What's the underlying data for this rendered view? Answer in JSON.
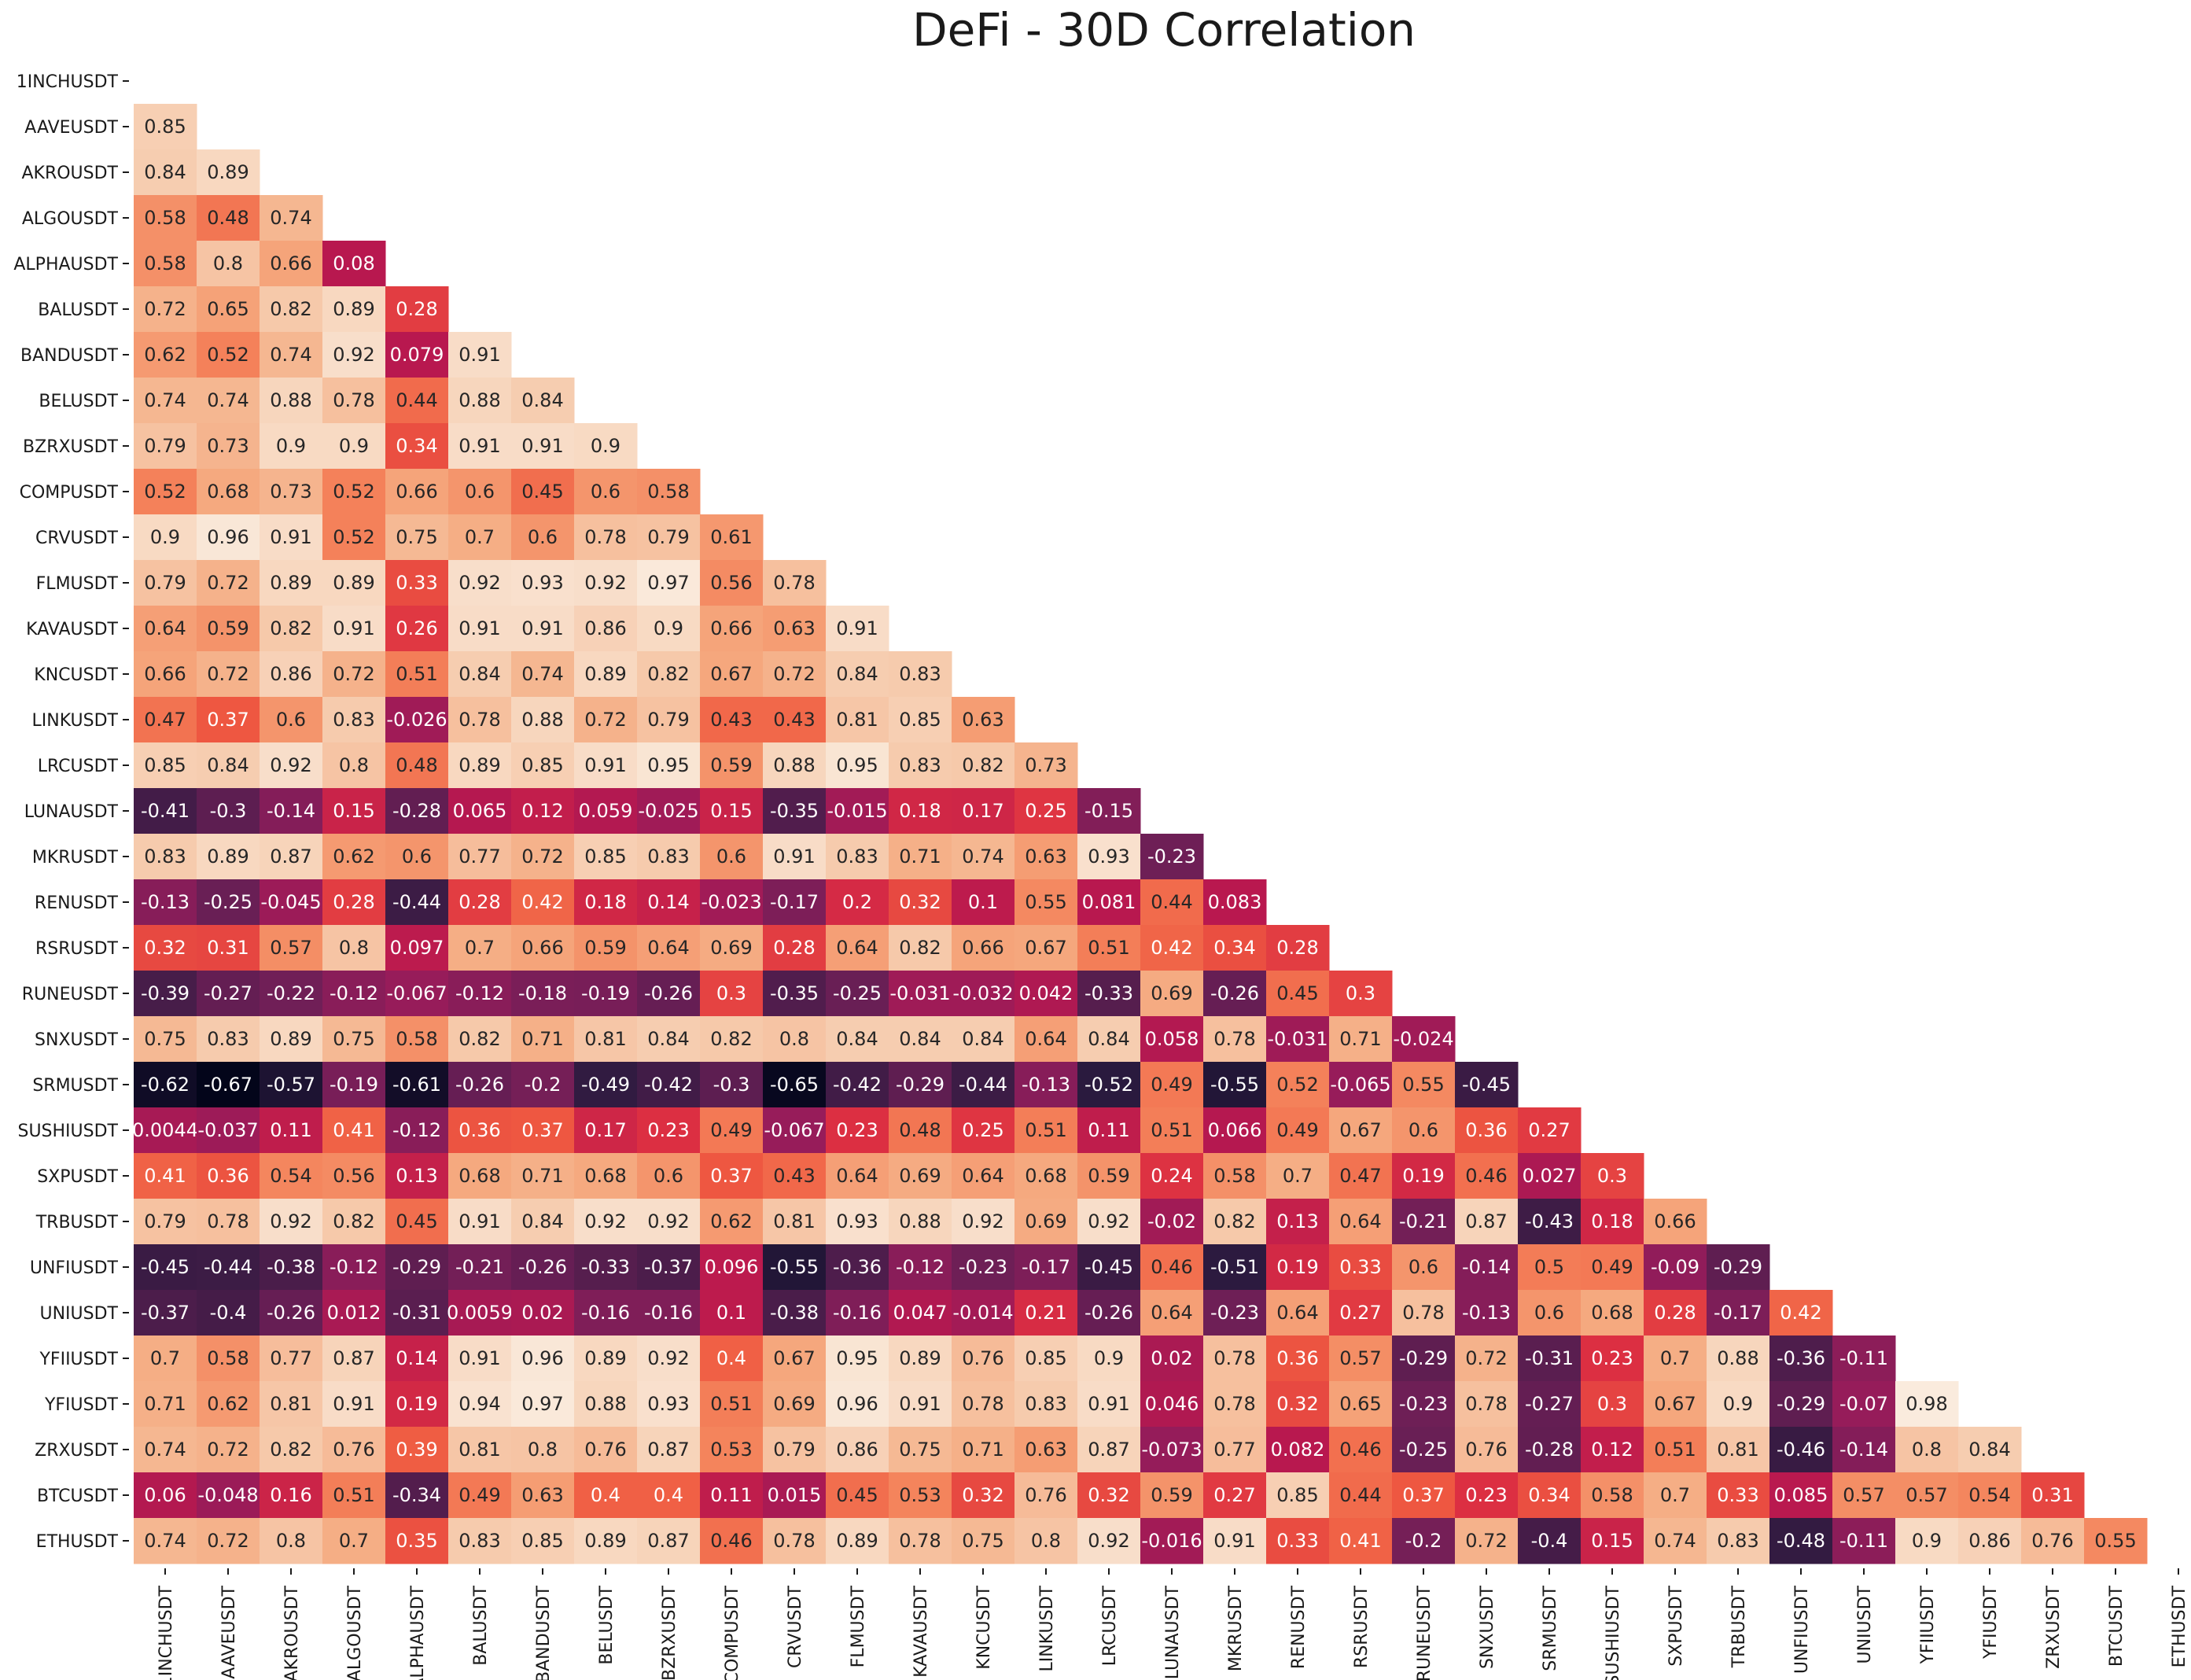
{
  "chart_data": {
    "type": "heatmap",
    "title": "DeFi - 30D Correlation",
    "mask": "upper-triangle-and-diagonal",
    "labels": [
      "1INCHUSDT",
      "AAVEUSDT",
      "AKROUSDT",
      "ALGOUSDT",
      "ALPHAUSDT",
      "BALUSDT",
      "BANDUSDT",
      "BELUSDT",
      "BZRXUSDT",
      "COMPUSDT",
      "CRVUSDT",
      "FLMUSDT",
      "KAVAUSDT",
      "KNCUSDT",
      "LINKUSDT",
      "LRCUSDT",
      "LUNAUSDT",
      "MKRUSDT",
      "RENUSDT",
      "RSRUSDT",
      "RUNEUSDT",
      "SNXUSDT",
      "SRMUSDT",
      "SUSHIUSDT",
      "SXPUSDT",
      "TRBUSDT",
      "UNFIUSDT",
      "UNIUSDT",
      "YFIIUSDT",
      "YFIUSDT",
      "ZRXUSDT",
      "BTCUSDT",
      "ETHUSDT"
    ],
    "rows": [
      [],
      [
        "0.85"
      ],
      [
        "0.84",
        "0.89"
      ],
      [
        "0.58",
        "0.48",
        "0.74"
      ],
      [
        "0.58",
        "0.8",
        "0.66",
        "0.08"
      ],
      [
        "0.72",
        "0.65",
        "0.82",
        "0.89",
        "0.28"
      ],
      [
        "0.62",
        "0.52",
        "0.74",
        "0.92",
        "0.079",
        "0.91"
      ],
      [
        "0.74",
        "0.74",
        "0.88",
        "0.78",
        "0.44",
        "0.88",
        "0.84"
      ],
      [
        "0.79",
        "0.73",
        "0.9",
        "0.9",
        "0.34",
        "0.91",
        "0.91",
        "0.9"
      ],
      [
        "0.52",
        "0.68",
        "0.73",
        "0.52",
        "0.66",
        "0.6",
        "0.45",
        "0.6",
        "0.58"
      ],
      [
        "0.9",
        "0.96",
        "0.91",
        "0.52",
        "0.75",
        "0.7",
        "0.6",
        "0.78",
        "0.79",
        "0.61"
      ],
      [
        "0.79",
        "0.72",
        "0.89",
        "0.89",
        "0.33",
        "0.92",
        "0.93",
        "0.92",
        "0.97",
        "0.56",
        "0.78"
      ],
      [
        "0.64",
        "0.59",
        "0.82",
        "0.91",
        "0.26",
        "0.91",
        "0.91",
        "0.86",
        "0.9",
        "0.66",
        "0.63",
        "0.91"
      ],
      [
        "0.66",
        "0.72",
        "0.86",
        "0.72",
        "0.51",
        "0.84",
        "0.74",
        "0.89",
        "0.82",
        "0.67",
        "0.72",
        "0.84",
        "0.83"
      ],
      [
        "0.47",
        "0.37",
        "0.6",
        "0.83",
        "-0.026",
        "0.78",
        "0.88",
        "0.72",
        "0.79",
        "0.43",
        "0.43",
        "0.81",
        "0.85",
        "0.63"
      ],
      [
        "0.85",
        "0.84",
        "0.92",
        "0.8",
        "0.48",
        "0.89",
        "0.85",
        "0.91",
        "0.95",
        "0.59",
        "0.88",
        "0.95",
        "0.83",
        "0.82",
        "0.73"
      ],
      [
        "-0.41",
        "-0.3",
        "-0.14",
        "0.15",
        "-0.28",
        "0.065",
        "0.12",
        "0.059",
        "-0.025",
        "0.15",
        "-0.35",
        "-0.015",
        "0.18",
        "0.17",
        "0.25",
        "-0.15"
      ],
      [
        "0.83",
        "0.89",
        "0.87",
        "0.62",
        "0.6",
        "0.77",
        "0.72",
        "0.85",
        "0.83",
        "0.6",
        "0.91",
        "0.83",
        "0.71",
        "0.74",
        "0.63",
        "0.93",
        "-0.23"
      ],
      [
        "-0.13",
        "-0.25",
        "-0.045",
        "0.28",
        "-0.44",
        "0.28",
        "0.42",
        "0.18",
        "0.14",
        "-0.023",
        "-0.17",
        "0.2",
        "0.32",
        "0.1",
        "0.55",
        "0.081",
        "0.44",
        "0.083"
      ],
      [
        "0.32",
        "0.31",
        "0.57",
        "0.8",
        "0.097",
        "0.7",
        "0.66",
        "0.59",
        "0.64",
        "0.69",
        "0.28",
        "0.64",
        "0.82",
        "0.66",
        "0.67",
        "0.51",
        "0.42",
        "0.34",
        "0.28"
      ],
      [
        "-0.39",
        "-0.27",
        "-0.22",
        "-0.12",
        "-0.067",
        "-0.12",
        "-0.18",
        "-0.19",
        "-0.26",
        "0.3",
        "-0.35",
        "-0.25",
        "-0.031",
        "-0.032",
        "0.042",
        "-0.33",
        "0.69",
        "-0.26",
        "0.45",
        "0.3"
      ],
      [
        "0.75",
        "0.83",
        "0.89",
        "0.75",
        "0.58",
        "0.82",
        "0.71",
        "0.81",
        "0.84",
        "0.82",
        "0.8",
        "0.84",
        "0.84",
        "0.84",
        "0.64",
        "0.84",
        "0.058",
        "0.78",
        "-0.031",
        "0.71",
        "-0.024"
      ],
      [
        "-0.62",
        "-0.67",
        "-0.57",
        "-0.19",
        "-0.61",
        "-0.26",
        "-0.2",
        "-0.49",
        "-0.42",
        "-0.3",
        "-0.65",
        "-0.42",
        "-0.29",
        "-0.44",
        "-0.13",
        "-0.52",
        "0.49",
        "-0.55",
        "0.52",
        "-0.065",
        "0.55",
        "-0.45"
      ],
      [
        "0.0044",
        "-0.037",
        "0.11",
        "0.41",
        "-0.12",
        "0.36",
        "0.37",
        "0.17",
        "0.23",
        "0.49",
        "-0.067",
        "0.23",
        "0.48",
        "0.25",
        "0.51",
        "0.11",
        "0.51",
        "0.066",
        "0.49",
        "0.67",
        "0.6",
        "0.36",
        "0.27"
      ],
      [
        "0.41",
        "0.36",
        "0.54",
        "0.56",
        "0.13",
        "0.68",
        "0.71",
        "0.68",
        "0.6",
        "0.37",
        "0.43",
        "0.64",
        "0.69",
        "0.64",
        "0.68",
        "0.59",
        "0.24",
        "0.58",
        "0.7",
        "0.47",
        "0.19",
        "0.46",
        "0.027",
        "0.3"
      ],
      [
        "0.79",
        "0.78",
        "0.92",
        "0.82",
        "0.45",
        "0.91",
        "0.84",
        "0.92",
        "0.92",
        "0.62",
        "0.81",
        "0.93",
        "0.88",
        "0.92",
        "0.69",
        "0.92",
        "-0.02",
        "0.82",
        "0.13",
        "0.64",
        "-0.21",
        "0.87",
        "-0.43",
        "0.18",
        "0.66"
      ],
      [
        "-0.45",
        "-0.44",
        "-0.38",
        "-0.12",
        "-0.29",
        "-0.21",
        "-0.26",
        "-0.33",
        "-0.37",
        "0.096",
        "-0.55",
        "-0.36",
        "-0.12",
        "-0.23",
        "-0.17",
        "-0.45",
        "0.46",
        "-0.51",
        "0.19",
        "0.33",
        "0.6",
        "-0.14",
        "0.5",
        "0.49",
        "-0.09",
        "-0.29"
      ],
      [
        "-0.37",
        "-0.4",
        "-0.26",
        "0.012",
        "-0.31",
        "0.0059",
        "0.02",
        "-0.16",
        "-0.16",
        "0.1",
        "-0.38",
        "-0.16",
        "0.047",
        "-0.014",
        "0.21",
        "-0.26",
        "0.64",
        "-0.23",
        "0.64",
        "0.27",
        "0.78",
        "-0.13",
        "0.6",
        "0.68",
        "0.28",
        "-0.17",
        "0.42"
      ],
      [
        "0.7",
        "0.58",
        "0.77",
        "0.87",
        "0.14",
        "0.91",
        "0.96",
        "0.89",
        "0.92",
        "0.4",
        "0.67",
        "0.95",
        "0.89",
        "0.76",
        "0.85",
        "0.9",
        "0.02",
        "0.78",
        "0.36",
        "0.57",
        "-0.29",
        "0.72",
        "-0.31",
        "0.23",
        "0.7",
        "0.88",
        "-0.36",
        "-0.11"
      ],
      [
        "0.71",
        "0.62",
        "0.81",
        "0.91",
        "0.19",
        "0.94",
        "0.97",
        "0.88",
        "0.93",
        "0.51",
        "0.69",
        "0.96",
        "0.91",
        "0.78",
        "0.83",
        "0.91",
        "0.046",
        "0.78",
        "0.32",
        "0.65",
        "-0.23",
        "0.78",
        "-0.27",
        "0.3",
        "0.67",
        "0.9",
        "-0.29",
        "-0.07",
        "0.98"
      ],
      [
        "0.74",
        "0.72",
        "0.82",
        "0.76",
        "0.39",
        "0.81",
        "0.8",
        "0.76",
        "0.87",
        "0.53",
        "0.79",
        "0.86",
        "0.75",
        "0.71",
        "0.63",
        "0.87",
        "-0.073",
        "0.77",
        "0.082",
        "0.46",
        "-0.25",
        "0.76",
        "-0.28",
        "0.12",
        "0.51",
        "0.81",
        "-0.46",
        "-0.14",
        "0.8",
        "0.84"
      ],
      [
        "0.06",
        "-0.048",
        "0.16",
        "0.51",
        "-0.34",
        "0.49",
        "0.63",
        "0.4",
        "0.4",
        "0.11",
        "0.015",
        "0.45",
        "0.53",
        "0.32",
        "0.76",
        "0.32",
        "0.59",
        "0.27",
        "0.85",
        "0.44",
        "0.37",
        "0.23",
        "0.34",
        "0.58",
        "0.7",
        "0.33",
        "0.085",
        "0.57",
        "0.57",
        "0.54",
        "0.31"
      ],
      [
        "0.74",
        "0.72",
        "0.8",
        "0.7",
        "0.35",
        "0.83",
        "0.85",
        "0.89",
        "0.87",
        "0.46",
        "0.78",
        "0.89",
        "0.78",
        "0.75",
        "0.8",
        "0.92",
        "-0.016",
        "0.91",
        "0.33",
        "0.41",
        "-0.2",
        "0.72",
        "-0.4",
        "0.15",
        "0.74",
        "0.83",
        "-0.48",
        "-0.11",
        "0.9",
        "0.86",
        "0.76",
        "0.55"
      ]
    ],
    "color_scale": {
      "name": "rocket",
      "vmin": -0.67,
      "vmax": 0.98,
      "stops": [
        "#03051a",
        "#2a1a3e",
        "#4c1d4b",
        "#701f57",
        "#961c5a",
        "#b8184f",
        "#dc2f42",
        "#ef5a41",
        "#f4845c",
        "#f5a97f",
        "#f6cbad",
        "#faebdd"
      ]
    }
  }
}
